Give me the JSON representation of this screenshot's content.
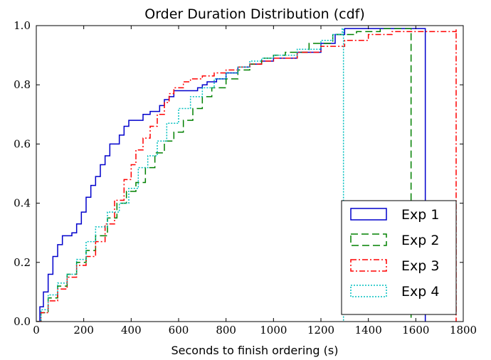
{
  "chart_data": {
    "type": "line",
    "title": "Order Duration Distribution (cdf)",
    "xlabel": "Seconds to finish ordering (s)",
    "ylabel": "",
    "xlim": [
      0,
      1800
    ],
    "ylim": [
      0,
      1.0
    ],
    "x_ticks": [
      "0",
      "200",
      "400",
      "600",
      "800",
      "1000",
      "1200",
      "1400",
      "1600",
      "1800"
    ],
    "y_ticks": [
      "0.0",
      "0.2",
      "0.4",
      "0.6",
      "0.8",
      "1.0"
    ],
    "grid": false,
    "legend_position": "lower right",
    "series": [
      {
        "name": "Exp 1",
        "color": "#0000cc",
        "dash": "",
        "x": [
          0,
          15,
          30,
          50,
          70,
          90,
          110,
          150,
          170,
          190,
          210,
          230,
          250,
          270,
          290,
          310,
          350,
          370,
          390,
          410,
          450,
          480,
          520,
          540,
          560,
          580,
          650,
          680,
          700,
          720,
          760,
          800,
          850,
          900,
          950,
          1000,
          1100,
          1200,
          1260,
          1300,
          1640,
          1640
        ],
        "y": [
          0,
          0.05,
          0.1,
          0.16,
          0.22,
          0.26,
          0.29,
          0.3,
          0.33,
          0.37,
          0.42,
          0.46,
          0.49,
          0.53,
          0.56,
          0.6,
          0.63,
          0.66,
          0.68,
          0.68,
          0.7,
          0.71,
          0.73,
          0.75,
          0.76,
          0.78,
          0.78,
          0.79,
          0.8,
          0.81,
          0.82,
          0.84,
          0.86,
          0.87,
          0.88,
          0.89,
          0.91,
          0.94,
          0.97,
          0.99,
          0.99,
          0
        ]
      },
      {
        "name": "Exp 2",
        "color": "#008000",
        "dash": "10,5",
        "x": [
          0,
          20,
          50,
          90,
          130,
          170,
          210,
          250,
          300,
          340,
          380,
          420,
          460,
          500,
          540,
          580,
          620,
          660,
          700,
          740,
          800,
          850,
          900,
          950,
          1000,
          1050,
          1150,
          1250,
          1350,
          1450,
          1560,
          1580,
          1580
        ],
        "y": [
          0,
          0.03,
          0.08,
          0.12,
          0.16,
          0.2,
          0.24,
          0.29,
          0.35,
          0.4,
          0.44,
          0.47,
          0.52,
          0.57,
          0.61,
          0.64,
          0.68,
          0.72,
          0.76,
          0.79,
          0.82,
          0.85,
          0.87,
          0.89,
          0.9,
          0.91,
          0.94,
          0.97,
          0.98,
          0.99,
          0.99,
          0.99,
          0
        ]
      },
      {
        "name": "Exp 3",
        "color": "#ff0000",
        "dash": "8,3,2,3",
        "x": [
          0,
          20,
          50,
          90,
          130,
          170,
          210,
          250,
          290,
          330,
          370,
          400,
          420,
          450,
          480,
          510,
          540,
          560,
          580,
          620,
          650,
          700,
          750,
          800,
          850,
          900,
          950,
          1000,
          1100,
          1200,
          1300,
          1400,
          1500,
          1600,
          1770,
          1770
        ],
        "y": [
          0,
          0.03,
          0.07,
          0.11,
          0.15,
          0.19,
          0.22,
          0.27,
          0.33,
          0.41,
          0.48,
          0.53,
          0.58,
          0.62,
          0.66,
          0.7,
          0.74,
          0.77,
          0.79,
          0.81,
          0.82,
          0.83,
          0.84,
          0.85,
          0.86,
          0.87,
          0.88,
          0.89,
          0.91,
          0.93,
          0.95,
          0.97,
          0.98,
          0.98,
          0.99,
          0
        ]
      },
      {
        "name": "Exp 4",
        "color": "#00bfbf",
        "dash": "2,2",
        "x": [
          0,
          20,
          50,
          90,
          130,
          170,
          210,
          250,
          300,
          350,
          390,
          430,
          470,
          510,
          550,
          600,
          650,
          700,
          750,
          800,
          850,
          900,
          950,
          1000,
          1100,
          1200,
          1250,
          1290,
          1295,
          1295
        ],
        "y": [
          0,
          0.04,
          0.09,
          0.13,
          0.16,
          0.21,
          0.27,
          0.32,
          0.37,
          0.4,
          0.45,
          0.52,
          0.56,
          0.61,
          0.67,
          0.72,
          0.76,
          0.79,
          0.82,
          0.84,
          0.86,
          0.88,
          0.89,
          0.9,
          0.92,
          0.95,
          0.97,
          0.99,
          0.99,
          0
        ]
      }
    ]
  }
}
